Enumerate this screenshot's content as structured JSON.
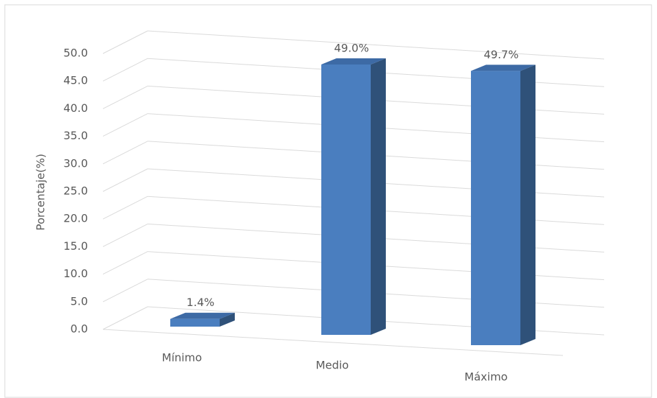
{
  "chart_data": {
    "type": "bar3d",
    "y_axis_label": "Porcentaje(%)",
    "categories": [
      "Mínimo",
      "Medio",
      "Máximo"
    ],
    "values": [
      1.4,
      49.0,
      49.7
    ],
    "value_labels": [
      "1.4%",
      "49.0%",
      "49.7%"
    ],
    "color": "#4a7ebf",
    "ylim": [
      0,
      50
    ],
    "yticks": [
      {
        "value": 0,
        "label": "0.0"
      },
      {
        "value": 5,
        "label": "5.0"
      },
      {
        "value": 10,
        "label": "10.0"
      },
      {
        "value": 15,
        "label": "15.0"
      },
      {
        "value": 20,
        "label": "20.0"
      },
      {
        "value": 25,
        "label": "25.0"
      },
      {
        "value": 30,
        "label": "30.0"
      },
      {
        "value": 35,
        "label": "35.0"
      },
      {
        "value": 40,
        "label": "40.0"
      },
      {
        "value": 45,
        "label": "45.0"
      },
      {
        "value": 50,
        "label": "50.0"
      }
    ],
    "grid": true
  }
}
